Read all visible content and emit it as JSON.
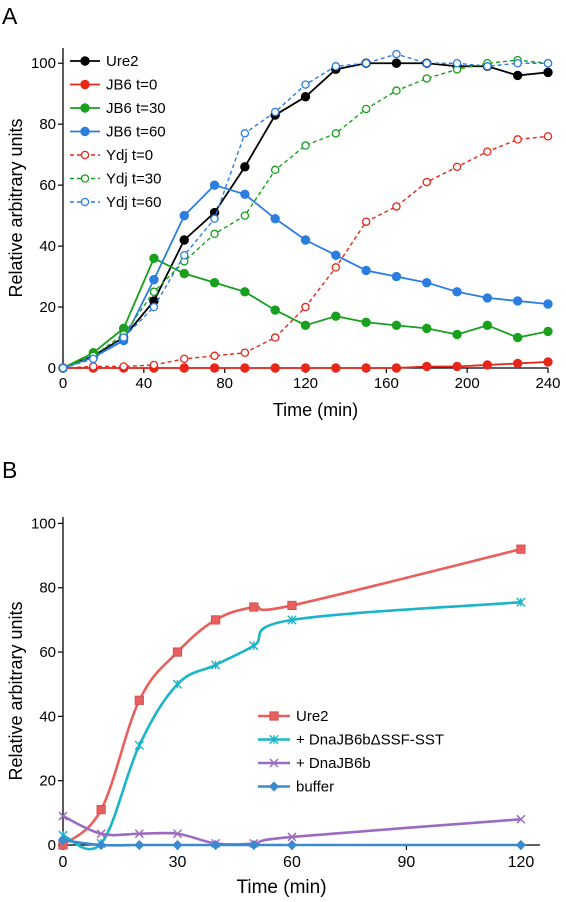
{
  "panels": [
    {
      "label": "A"
    },
    {
      "label": "B"
    }
  ],
  "chart_data": [
    {
      "panel": "A",
      "type": "line",
      "xlabel": "Time (min)",
      "ylabel": "Relative arbitrary units",
      "xlim": [
        0,
        240
      ],
      "ylim": [
        0,
        105
      ],
      "xticks": [
        0,
        40,
        80,
        120,
        160,
        200,
        240
      ],
      "yticks": [
        0,
        20,
        40,
        60,
        80,
        100
      ],
      "grid": false,
      "legend_position": "top-left",
      "series": [
        {
          "name": "Ure2",
          "color": "#000000",
          "dashed": false,
          "marker": "filled-circle",
          "x": [
            0,
            15,
            30,
            45,
            60,
            75,
            90,
            105,
            120,
            135,
            150,
            165,
            180,
            195,
            210,
            225,
            240
          ],
          "y": [
            0,
            4,
            10,
            22,
            42,
            51,
            66,
            83,
            89,
            98,
            100,
            100,
            100,
            99,
            99,
            96,
            97
          ]
        },
        {
          "name": "JB6 t=0",
          "color": "#e8271b",
          "dashed": false,
          "marker": "filled-circle",
          "x": [
            0,
            15,
            30,
            45,
            60,
            75,
            90,
            105,
            120,
            135,
            150,
            165,
            180,
            195,
            210,
            225,
            240
          ],
          "y": [
            0,
            0,
            0,
            0,
            0,
            0,
            0,
            0,
            0,
            0,
            0,
            0,
            0.5,
            0.5,
            1,
            1.5,
            2
          ]
        },
        {
          "name": "JB6 t=30",
          "color": "#18a01e",
          "dashed": false,
          "marker": "filled-circle",
          "x": [
            0,
            15,
            30,
            45,
            60,
            75,
            90,
            105,
            120,
            135,
            150,
            165,
            180,
            195,
            210,
            225,
            240
          ],
          "y": [
            0,
            5,
            13,
            36,
            31,
            28,
            25,
            19,
            14,
            17,
            15,
            14,
            13,
            11,
            14,
            10,
            12
          ]
        },
        {
          "name": "JB6 t=60",
          "color": "#2b7de0",
          "dashed": false,
          "marker": "filled-circle",
          "x": [
            0,
            15,
            30,
            45,
            60,
            75,
            90,
            105,
            120,
            135,
            150,
            165,
            180,
            195,
            210,
            225,
            240
          ],
          "y": [
            0,
            3.5,
            9,
            29,
            50,
            60,
            57,
            49,
            42,
            37,
            32,
            30,
            28,
            25,
            23,
            22,
            21
          ]
        },
        {
          "name": "Ydj t=0",
          "color": "#e8271b",
          "dashed": true,
          "marker": "open-circle",
          "x": [
            0,
            15,
            30,
            45,
            60,
            75,
            90,
            105,
            120,
            135,
            150,
            165,
            180,
            195,
            210,
            225,
            240
          ],
          "y": [
            0,
            0.5,
            0.5,
            1,
            3,
            4,
            5,
            10,
            20,
            33,
            48,
            53,
            61,
            66,
            71,
            75,
            76
          ]
        },
        {
          "name": "Ydj t=30",
          "color": "#18a01e",
          "dashed": true,
          "marker": "open-circle",
          "x": [
            0,
            15,
            30,
            45,
            60,
            75,
            90,
            105,
            120,
            135,
            150,
            165,
            180,
            195,
            210,
            225,
            240
          ],
          "y": [
            0,
            4,
            11,
            25,
            35,
            44,
            50,
            65,
            73,
            77,
            85,
            91,
            95,
            98,
            100,
            101,
            100
          ]
        },
        {
          "name": "Ydj t=60",
          "color": "#2b7de0",
          "dashed": true,
          "marker": "open-circle",
          "x": [
            0,
            15,
            30,
            45,
            60,
            75,
            90,
            105,
            120,
            135,
            150,
            165,
            180,
            195,
            210,
            225,
            240
          ],
          "y": [
            0,
            3,
            10,
            20,
            37,
            49,
            77,
            84,
            93,
            99,
            100,
            103,
            100,
            100,
            99,
            100,
            100
          ]
        }
      ]
    },
    {
      "panel": "B",
      "type": "line",
      "xlabel": "Time (min)",
      "ylabel": "Relative arbitrary units",
      "xlim": [
        0,
        125
      ],
      "ylim": [
        0,
        102
      ],
      "xticks": [
        0,
        30,
        60,
        90,
        120
      ],
      "yticks": [
        0,
        20,
        40,
        60,
        80,
        100
      ],
      "grid": false,
      "legend_position": "bottom-right",
      "series": [
        {
          "name": "Ure2",
          "color": "#e8605e",
          "marker": "square",
          "x": [
            0,
            10,
            20,
            30,
            40,
            50,
            60,
            120
          ],
          "y": [
            0,
            11,
            45,
            60,
            70,
            74,
            74.5,
            92
          ]
        },
        {
          "name": "+ DnaJB6bΔSSF-SST",
          "color": "#1ab5c8",
          "marker": "asterisk",
          "x": [
            0,
            10,
            20,
            30,
            40,
            50,
            60,
            120
          ],
          "y": [
            3,
            0.5,
            31,
            50,
            56,
            62,
            70,
            75.5
          ]
        },
        {
          "name": "+ DnaJB6b",
          "color": "#9b6bc0",
          "marker": "cross",
          "x": [
            0,
            10,
            20,
            30,
            40,
            50,
            60,
            120
          ],
          "y": [
            9,
            3.5,
            3.5,
            3.5,
            0.5,
            0.5,
            2.5,
            8
          ]
        },
        {
          "name": "buffer",
          "color": "#3a8ad0",
          "marker": "diamond",
          "x": [
            0,
            10,
            20,
            30,
            40,
            50,
            60,
            120
          ],
          "y": [
            1.5,
            0,
            0,
            0,
            0,
            0,
            0,
            0
          ]
        }
      ]
    }
  ]
}
